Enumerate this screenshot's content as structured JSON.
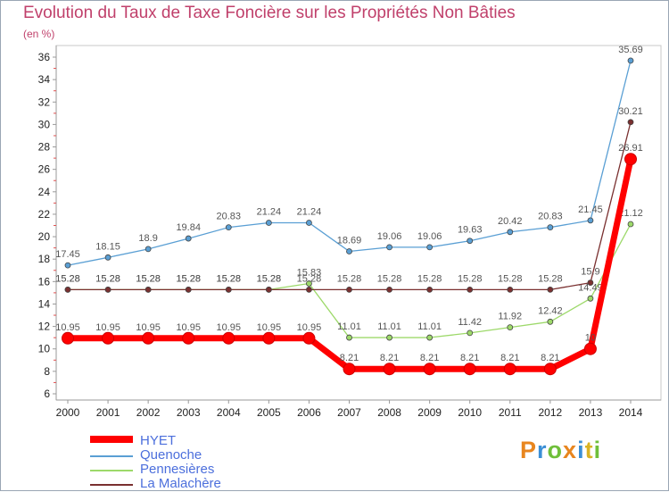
{
  "title": "Evolution du Taux de Taxe Foncière sur les Propriétés Non Bâties",
  "unit": "(en %)",
  "logo": {
    "text": "Proxiti",
    "colors": [
      "#e8861f",
      "#3b8fd6",
      "#6fbf3a",
      "#e8861f",
      "#3b8fd6",
      "#d9b325",
      "#6fbf3a"
    ]
  },
  "chart_data": {
    "type": "line",
    "title": "Evolution du Taux de Taxe Foncière sur les Propriétés Non Bâties",
    "ylabel": "(en %)",
    "ylim": [
      6,
      36
    ],
    "yticks": [
      6,
      8,
      10,
      12,
      14,
      16,
      18,
      20,
      22,
      24,
      26,
      28,
      30,
      32,
      34,
      36
    ],
    "grid": false,
    "legend": "bottom-left",
    "x": [
      "2000",
      "2001",
      "2002",
      "2003",
      "2004",
      "2005",
      "2006",
      "2007",
      "2008",
      "2009",
      "2010",
      "2011",
      "2012",
      "2013",
      "2014"
    ],
    "series": [
      {
        "name": "Quenoche",
        "color": "#5a9fd4",
        "values": [
          17.45,
          18.15,
          18.9,
          19.84,
          20.83,
          21.24,
          21.24,
          18.69,
          19.06,
          19.06,
          19.63,
          20.42,
          20.83,
          21.45,
          35.69
        ],
        "labels": [
          "17.45",
          "18.15",
          "18.9",
          "19.84",
          "20.83",
          "21.24",
          "21.24",
          "18.69",
          "19.06",
          "19.06",
          "19.63",
          "20.42",
          "20.83",
          "21.45",
          "35.69"
        ]
      },
      {
        "name": "Pennesières",
        "color": "#9dd96a",
        "values": [
          15.28,
          15.28,
          15.28,
          15.28,
          15.28,
          15.28,
          15.83,
          11.01,
          11.01,
          11.01,
          11.42,
          11.92,
          12.42,
          14.49,
          21.12
        ],
        "labels": [
          "15.28",
          "15.28",
          "15.28",
          "15.28",
          "15.28",
          "15.28",
          "15.83",
          "11.01",
          "11.01",
          "11.01",
          "11.42",
          "11.92",
          "12.42",
          "14.49",
          "21.12"
        ]
      },
      {
        "name": "La Malachère",
        "color": "#7a3030",
        "values": [
          15.28,
          15.28,
          15.28,
          15.28,
          15.28,
          15.28,
          15.28,
          15.28,
          15.28,
          15.28,
          15.28,
          15.28,
          15.28,
          15.9,
          30.21
        ],
        "labels": [
          "15.28",
          "15.28",
          "15.28",
          "15.28",
          "15.28",
          "15.28",
          "15.28",
          "15.28",
          "15.28",
          "15.28",
          "15.28",
          "15.28",
          "15.28",
          "15.9",
          "30.21"
        ]
      },
      {
        "name": "HYET",
        "color": "#ff0000",
        "values": [
          10.95,
          10.95,
          10.95,
          10.95,
          10.95,
          10.95,
          10.95,
          8.21,
          8.21,
          8.21,
          8.21,
          8.21,
          8.21,
          10,
          26.91
        ],
        "labels": [
          "10.95",
          "10.95",
          "10.95",
          "10.95",
          "10.95",
          "10.95",
          "10.95",
          "8.21",
          "8.21",
          "8.21",
          "8.21",
          "8.21",
          "8.21",
          "10",
          "26.91"
        ]
      }
    ],
    "legend_entries": [
      {
        "name": "HYET",
        "color": "#ff0000"
      },
      {
        "name": "Quenoche",
        "color": "#5a9fd4"
      },
      {
        "name": "Pennesières",
        "color": "#9dd96a"
      },
      {
        "name": "La Malachère",
        "color": "#7a3030"
      }
    ]
  }
}
